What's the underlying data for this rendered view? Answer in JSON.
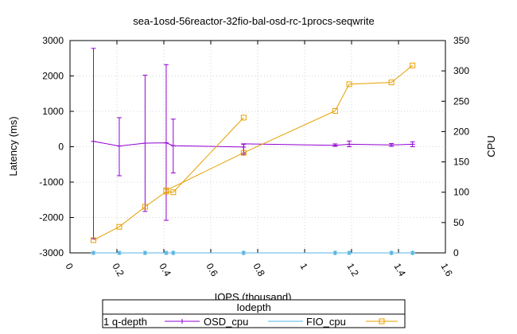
{
  "chart_data": {
    "type": "line",
    "title": "sea-1osd-56reactor-32fio-bal-osd-rc-1procs-seqwrite",
    "xlabel": "IOPS (thousand)",
    "ylabel": "Latency (ms)",
    "y2label": "CPU",
    "xlim": [
      0,
      1.6
    ],
    "ylim": [
      -3000,
      3000
    ],
    "y2lim": [
      0,
      350
    ],
    "xticks": [
      {
        "v": 0,
        "label": "0"
      },
      {
        "v": 0.2,
        "label": "0.2"
      },
      {
        "v": 0.4,
        "label": "0.4"
      },
      {
        "v": 0.6,
        "label": "0.6"
      },
      {
        "v": 0.8,
        "label": "0.8"
      },
      {
        "v": 1.0,
        "label": "1"
      },
      {
        "v": 1.2,
        "label": "1.2"
      },
      {
        "v": 1.4,
        "label": "1.4"
      },
      {
        "v": 1.6,
        "label": "1.6"
      }
    ],
    "yticks": [
      {
        "v": -3000,
        "label": "-3000"
      },
      {
        "v": -2000,
        "label": "-2000"
      },
      {
        "v": -1000,
        "label": "-1000"
      },
      {
        "v": 0,
        "label": "0"
      },
      {
        "v": 1000,
        "label": "1000"
      },
      {
        "v": 2000,
        "label": "2000"
      },
      {
        "v": 3000,
        "label": "3000"
      }
    ],
    "y2ticks": [
      {
        "v": 0,
        "label": "0"
      },
      {
        "v": 50,
        "label": "50"
      },
      {
        "v": 100,
        "label": "100"
      },
      {
        "v": 150,
        "label": "150"
      },
      {
        "v": 200,
        "label": "200"
      },
      {
        "v": 250,
        "label": "250"
      },
      {
        "v": 300,
        "label": "300"
      },
      {
        "v": 350,
        "label": "350"
      }
    ],
    "grid": true,
    "legend": {
      "placement": "bottom",
      "title": "Iodepth",
      "row_label": "1 q-depth",
      "entries": [
        "OSD_cpu",
        "FIO_cpu",
        ""
      ]
    },
    "series": [
      {
        "name": "1 q-depth",
        "axis": "y",
        "color": "#9400d3",
        "marker": "errorbar",
        "x": [
          0.1,
          0.21,
          0.32,
          0.41,
          0.44,
          0.74
        ],
        "y": [
          150,
          20,
          100,
          110,
          30,
          -10
        ],
        "yerr_low": [
          -2600,
          -820,
          -1830,
          -2080,
          -740,
          -180
        ],
        "yerr_high": [
          2780,
          820,
          2020,
          2320,
          780,
          70
        ]
      },
      {
        "name": "1 q-depth",
        "axis": "y",
        "color": "#9400d3",
        "marker": "errorbar",
        "x": [
          0.74,
          1.13,
          1.19,
          1.37,
          1.46
        ],
        "y": [
          80,
          40,
          70,
          50,
          70
        ],
        "yerr_low": [
          -220,
          10,
          0,
          10,
          0
        ],
        "yerr_high": [
          80,
          80,
          160,
          90,
          140
        ]
      },
      {
        "name": "OSD_cpu",
        "axis": "y2",
        "color": "#009e73",
        "marker": "star",
        "x": [
          0.1,
          0.21,
          0.32,
          0.41,
          0.44,
          0.74,
          1.13,
          1.19,
          1.37,
          1.46
        ],
        "y": [
          0,
          0,
          0,
          0,
          0,
          0,
          0,
          0,
          0,
          0
        ]
      },
      {
        "name": "FIO_cpu",
        "axis": "y2",
        "color": "#56b4e9",
        "marker": "star",
        "x": [
          0.1,
          0.21,
          0.32,
          0.41,
          0.44,
          0.74,
          1.13,
          1.19,
          1.37,
          1.46
        ],
        "y": [
          0,
          0,
          0,
          0,
          0,
          0,
          0,
          0,
          0,
          0
        ]
      },
      {
        "name": "",
        "axis": "y2",
        "color": "#e69f00",
        "marker": "square",
        "x": [
          0.1,
          0.21,
          0.32,
          0.41,
          0.44,
          0.74
        ],
        "y": [
          21,
          43,
          76,
          101,
          100,
          223
        ]
      },
      {
        "name": "",
        "axis": "y2",
        "color": "#e69f00",
        "marker": "square",
        "x": [
          0.41,
          0.74,
          1.13,
          1.19,
          1.37,
          1.46
        ],
        "y": [
          103,
          165,
          234,
          278,
          281,
          309
        ]
      }
    ]
  }
}
